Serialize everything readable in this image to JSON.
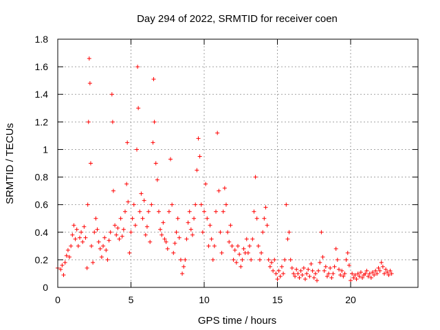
{
  "chart_data": {
    "type": "scatter",
    "title": "Day 294 of 2022, SRMTID for receiver coen",
    "xlabel": "GPS time / hours",
    "ylabel": "SRMTID / TECUs",
    "xlim": [
      0,
      24.6
    ],
    "ylim": [
      0,
      1.8
    ],
    "x_ticks": [
      0,
      5,
      10,
      15,
      20
    ],
    "x_tick_labels": [
      "0",
      "5",
      "10",
      "15",
      "20"
    ],
    "y_ticks": [
      0,
      0.2,
      0.4,
      0.6,
      0.8,
      1.0,
      1.2,
      1.4,
      1.6,
      1.8
    ],
    "y_tick_labels": [
      "0",
      "0.2",
      "0.4",
      "0.6",
      "0.8",
      "1",
      "1.2",
      "1.4",
      "1.6",
      "1.8"
    ],
    "grid": true,
    "marker": "plus",
    "color": "#ff0000",
    "series": [
      {
        "name": "SRMTID",
        "points": [
          [
            0.0,
            0.14
          ],
          [
            0.2,
            0.13
          ],
          [
            0.3,
            0.16
          ],
          [
            0.4,
            0.09
          ],
          [
            0.5,
            0.18
          ],
          [
            0.6,
            0.23
          ],
          [
            0.7,
            0.27
          ],
          [
            0.8,
            0.22
          ],
          [
            0.9,
            0.3
          ],
          [
            1.0,
            0.38
          ],
          [
            1.1,
            0.45
          ],
          [
            1.2,
            0.35
          ],
          [
            1.3,
            0.42
          ],
          [
            1.4,
            0.3
          ],
          [
            1.5,
            0.36
          ],
          [
            1.6,
            0.4
          ],
          [
            1.7,
            0.33
          ],
          [
            1.8,
            0.44
          ],
          [
            1.9,
            0.36
          ],
          [
            2.0,
            0.14
          ],
          [
            2.05,
            0.6
          ],
          [
            2.1,
            1.2
          ],
          [
            2.15,
            1.66
          ],
          [
            2.2,
            1.48
          ],
          [
            2.25,
            0.9
          ],
          [
            2.3,
            0.3
          ],
          [
            2.4,
            0.18
          ],
          [
            2.5,
            0.4
          ],
          [
            2.6,
            0.5
          ],
          [
            2.7,
            0.42
          ],
          [
            2.8,
            0.33
          ],
          [
            2.9,
            0.28
          ],
          [
            3.0,
            0.22
          ],
          [
            3.1,
            0.3
          ],
          [
            3.2,
            0.36
          ],
          [
            3.3,
            0.27
          ],
          [
            3.4,
            0.2
          ],
          [
            3.5,
            0.34
          ],
          [
            3.6,
            0.4
          ],
          [
            3.7,
            1.4
          ],
          [
            3.75,
            1.2
          ],
          [
            3.8,
            0.7
          ],
          [
            3.9,
            0.45
          ],
          [
            4.0,
            0.38
          ],
          [
            4.1,
            0.43
          ],
          [
            4.2,
            0.35
          ],
          [
            4.3,
            0.5
          ],
          [
            4.4,
            0.37
          ],
          [
            4.5,
            0.42
          ],
          [
            4.6,
            0.55
          ],
          [
            4.7,
            0.75
          ],
          [
            4.75,
            1.05
          ],
          [
            4.8,
            0.62
          ],
          [
            4.9,
            0.25
          ],
          [
            5.0,
            0.4
          ],
          [
            5.1,
            0.5
          ],
          [
            5.2,
            0.6
          ],
          [
            5.3,
            0.45
          ],
          [
            5.4,
            1.0
          ],
          [
            5.45,
            1.6
          ],
          [
            5.5,
            1.3
          ],
          [
            5.6,
            0.55
          ],
          [
            5.7,
            0.68
          ],
          [
            5.8,
            0.5
          ],
          [
            5.9,
            0.63
          ],
          [
            6.0,
            0.38
          ],
          [
            6.1,
            0.44
          ],
          [
            6.2,
            0.55
          ],
          [
            6.3,
            0.33
          ],
          [
            6.4,
            0.6
          ],
          [
            6.5,
            1.05
          ],
          [
            6.55,
            1.51
          ],
          [
            6.6,
            1.2
          ],
          [
            6.7,
            0.9
          ],
          [
            6.8,
            0.78
          ],
          [
            6.9,
            0.55
          ],
          [
            7.0,
            0.42
          ],
          [
            7.1,
            0.38
          ],
          [
            7.2,
            0.47
          ],
          [
            7.3,
            0.35
          ],
          [
            7.4,
            0.33
          ],
          [
            7.5,
            0.28
          ],
          [
            7.6,
            0.55
          ],
          [
            7.7,
            0.93
          ],
          [
            7.8,
            0.6
          ],
          [
            7.9,
            0.25
          ],
          [
            8.0,
            0.32
          ],
          [
            8.1,
            0.4
          ],
          [
            8.2,
            0.5
          ],
          [
            8.3,
            0.36
          ],
          [
            8.4,
            0.2
          ],
          [
            8.5,
            0.1
          ],
          [
            8.6,
            0.15
          ],
          [
            8.7,
            0.2
          ],
          [
            8.8,
            0.35
          ],
          [
            8.9,
            0.47
          ],
          [
            9.0,
            0.55
          ],
          [
            9.1,
            0.42
          ],
          [
            9.2,
            0.38
          ],
          [
            9.3,
            0.5
          ],
          [
            9.4,
            0.6
          ],
          [
            9.5,
            0.85
          ],
          [
            9.6,
            1.08
          ],
          [
            9.7,
            0.95
          ],
          [
            9.8,
            0.6
          ],
          [
            9.9,
            0.4
          ],
          [
            10.0,
            0.55
          ],
          [
            10.1,
            0.75
          ],
          [
            10.2,
            0.5
          ],
          [
            10.3,
            0.3
          ],
          [
            10.4,
            0.45
          ],
          [
            10.5,
            0.35
          ],
          [
            10.6,
            0.2
          ],
          [
            10.7,
            0.3
          ],
          [
            10.8,
            0.55
          ],
          [
            10.9,
            1.12
          ],
          [
            11.0,
            0.7
          ],
          [
            11.1,
            0.4
          ],
          [
            11.2,
            0.25
          ],
          [
            11.3,
            0.55
          ],
          [
            11.4,
            0.72
          ],
          [
            11.5,
            0.6
          ],
          [
            11.6,
            0.4
          ],
          [
            11.7,
            0.33
          ],
          [
            11.8,
            0.45
          ],
          [
            11.9,
            0.3
          ],
          [
            12.0,
            0.2
          ],
          [
            12.1,
            0.27
          ],
          [
            12.2,
            0.18
          ],
          [
            12.3,
            0.3
          ],
          [
            12.4,
            0.24
          ],
          [
            12.5,
            0.15
          ],
          [
            12.6,
            0.2
          ],
          [
            12.7,
            0.28
          ],
          [
            12.8,
            0.25
          ],
          [
            12.9,
            0.35
          ],
          [
            13.0,
            0.25
          ],
          [
            13.1,
            0.3
          ],
          [
            13.2,
            0.2
          ],
          [
            13.3,
            0.35
          ],
          [
            13.4,
            0.55
          ],
          [
            13.5,
            0.8
          ],
          [
            13.6,
            0.5
          ],
          [
            13.7,
            0.3
          ],
          [
            13.8,
            0.2
          ],
          [
            13.9,
            0.25
          ],
          [
            14.0,
            0.4
          ],
          [
            14.1,
            0.5
          ],
          [
            14.2,
            0.58
          ],
          [
            14.3,
            0.45
          ],
          [
            14.4,
            0.2
          ],
          [
            14.5,
            0.15
          ],
          [
            14.6,
            0.18
          ],
          [
            14.7,
            0.12
          ],
          [
            14.8,
            0.2
          ],
          [
            14.9,
            0.1
          ],
          [
            15.0,
            0.06
          ],
          [
            15.1,
            0.12
          ],
          [
            15.2,
            0.08
          ],
          [
            15.3,
            0.15
          ],
          [
            15.4,
            0.1
          ],
          [
            15.5,
            0.2
          ],
          [
            15.6,
            0.6
          ],
          [
            15.7,
            0.35
          ],
          [
            15.8,
            0.4
          ],
          [
            15.9,
            0.2
          ],
          [
            16.0,
            0.14
          ],
          [
            16.1,
            0.1
          ],
          [
            16.2,
            0.08
          ],
          [
            16.3,
            0.13
          ],
          [
            16.4,
            0.1
          ],
          [
            16.5,
            0.07
          ],
          [
            16.6,
            0.12
          ],
          [
            16.7,
            0.09
          ],
          [
            16.8,
            0.14
          ],
          [
            16.9,
            0.06
          ],
          [
            17.0,
            0.1
          ],
          [
            17.1,
            0.13
          ],
          [
            17.2,
            0.08
          ],
          [
            17.3,
            0.17
          ],
          [
            17.4,
            0.12
          ],
          [
            17.5,
            0.07
          ],
          [
            17.6,
            0.1
          ],
          [
            17.7,
            0.05
          ],
          [
            17.8,
            0.12
          ],
          [
            17.9,
            0.18
          ],
          [
            18.0,
            0.4
          ],
          [
            18.1,
            0.22
          ],
          [
            18.2,
            0.12
          ],
          [
            18.3,
            0.15
          ],
          [
            18.4,
            0.08
          ],
          [
            18.5,
            0.1
          ],
          [
            18.6,
            0.14
          ],
          [
            18.7,
            0.07
          ],
          [
            18.8,
            0.1
          ],
          [
            18.9,
            0.15
          ],
          [
            19.0,
            0.28
          ],
          [
            19.1,
            0.2
          ],
          [
            19.2,
            0.13
          ],
          [
            19.3,
            0.09
          ],
          [
            19.4,
            0.12
          ],
          [
            19.5,
            0.08
          ],
          [
            19.6,
            0.1
          ],
          [
            19.7,
            0.2
          ],
          [
            19.8,
            0.25
          ],
          [
            19.9,
            0.16
          ],
          [
            20.0,
            0.05
          ],
          [
            20.1,
            0.1
          ],
          [
            20.2,
            0.07
          ],
          [
            20.3,
            0.09
          ],
          [
            20.4,
            0.06
          ],
          [
            20.5,
            0.1
          ],
          [
            20.6,
            0.08
          ],
          [
            20.7,
            0.11
          ],
          [
            20.8,
            0.07
          ],
          [
            20.9,
            0.09
          ],
          [
            21.0,
            0.1
          ],
          [
            21.1,
            0.12
          ],
          [
            21.2,
            0.08
          ],
          [
            21.3,
            0.1
          ],
          [
            21.4,
            0.07
          ],
          [
            21.5,
            0.11
          ],
          [
            21.6,
            0.09
          ],
          [
            21.7,
            0.12
          ],
          [
            21.8,
            0.1
          ],
          [
            21.9,
            0.14
          ],
          [
            22.0,
            0.12
          ],
          [
            22.1,
            0.18
          ],
          [
            22.2,
            0.15
          ],
          [
            22.3,
            0.1
          ],
          [
            22.4,
            0.13
          ],
          [
            22.5,
            0.11
          ],
          [
            22.6,
            0.09
          ],
          [
            22.7,
            0.12
          ],
          [
            22.8,
            0.1
          ]
        ]
      }
    ]
  }
}
